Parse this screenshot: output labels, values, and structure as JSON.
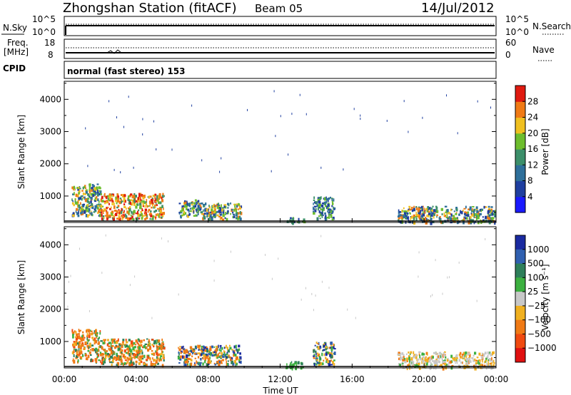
{
  "header": {
    "station": "Zhongshan Station (fitACF)",
    "beam": "Beam 05",
    "date": "14/Jul/2012"
  },
  "strip_panels": {
    "nsky": {
      "left_label": "N.Sky",
      "left_ticks": [
        "10^5",
        "10^0"
      ],
      "right_ticks": [
        "10^5",
        "10^0"
      ],
      "right_label": "N.Search"
    },
    "freq": {
      "left_label_top": "Freq.",
      "left_label_bottom": "[MHz]",
      "left_ticks": [
        "18",
        "8"
      ],
      "right_ticks": [
        "60",
        "0"
      ],
      "right_label": "Nave"
    },
    "cpid": {
      "label": "CPID",
      "text": "normal (fast stereo) 153"
    }
  },
  "chart_data": [
    {
      "type": "heatmap",
      "panel": "power",
      "ylabel": "Slant Range [km]",
      "yticks": [
        "1000",
        "2000",
        "3000",
        "4000"
      ],
      "ylim": [
        180,
        4560
      ],
      "xlim_hours": [
        0,
        24
      ],
      "colorbar": {
        "label": "Power [dB]",
        "range": [
          0,
          32
        ],
        "tick_labels": [
          "4",
          "8",
          "12",
          "16",
          "20",
          "24",
          "28"
        ],
        "colors": [
          "#1a1aff",
          "#1f3fa0",
          "#2e6f9a",
          "#3c8f6a",
          "#6dbd2d",
          "#f0c020",
          "#f07a15",
          "#e01a10"
        ]
      },
      "echo_regions": [
        {
          "t_start_h": 0.4,
          "t_end_h": 2.0,
          "r_min_km": 400,
          "r_max_km": 1400,
          "level": "medium"
        },
        {
          "t_start_h": 2.0,
          "t_end_h": 5.5,
          "r_min_km": 300,
          "r_max_km": 1100,
          "level": "strong"
        },
        {
          "t_start_h": 6.3,
          "t_end_h": 7.6,
          "r_min_km": 400,
          "r_max_km": 900,
          "level": "medium"
        },
        {
          "t_start_h": 7.6,
          "t_end_h": 9.8,
          "r_min_km": 300,
          "r_max_km": 800,
          "level": "medium"
        },
        {
          "t_start_h": 12.3,
          "t_end_h": 13.3,
          "r_min_km": 200,
          "r_max_km": 350,
          "level": "weak"
        },
        {
          "t_start_h": 13.8,
          "t_end_h": 15.0,
          "r_min_km": 300,
          "r_max_km": 1000,
          "level": "weak"
        },
        {
          "t_start_h": 18.5,
          "t_end_h": 23.9,
          "r_min_km": 200,
          "r_max_km": 700,
          "level": "medium"
        }
      ]
    },
    {
      "type": "heatmap",
      "panel": "velocity",
      "ylabel": "Slant Range [km]",
      "yticks": [
        "1000",
        "2000",
        "3000",
        "4000"
      ],
      "ylim": [
        180,
        4560
      ],
      "xlabel": "Time UT",
      "xticks": [
        "00:00",
        "04:00",
        "08:00",
        "12:00",
        "16:00",
        "20:00",
        "00:00"
      ],
      "xlim_hours": [
        0,
        24
      ],
      "colorbar": {
        "label": "Velocity [m s⁻¹]",
        "tick_labels": [
          "1000",
          "500",
          "100",
          "25",
          "−25",
          "−100",
          "−500",
          "−1000"
        ],
        "colors": [
          "#1a2aa0",
          "#3060b0",
          "#2e7f5a",
          "#3cb040",
          "#c8c8c8",
          "#f0b020",
          "#f07a15",
          "#f04a10",
          "#e01010"
        ]
      },
      "echo_regions": [
        {
          "t_start_h": 0.4,
          "t_end_h": 2.0,
          "r_min_km": 400,
          "r_max_km": 1400,
          "sign": "negative"
        },
        {
          "t_start_h": 2.0,
          "t_end_h": 5.5,
          "r_min_km": 300,
          "r_max_km": 1100,
          "sign": "negative"
        },
        {
          "t_start_h": 6.3,
          "t_end_h": 9.8,
          "r_min_km": 300,
          "r_max_km": 900,
          "sign": "mixed"
        },
        {
          "t_start_h": 12.3,
          "t_end_h": 13.3,
          "r_min_km": 200,
          "r_max_km": 400,
          "sign": "positive"
        },
        {
          "t_start_h": 13.8,
          "t_end_h": 15.0,
          "r_min_km": 300,
          "r_max_km": 1000,
          "sign": "mixed"
        },
        {
          "t_start_h": 18.5,
          "t_end_h": 23.9,
          "r_min_km": 200,
          "r_max_km": 700,
          "sign": "ground"
        }
      ]
    }
  ]
}
